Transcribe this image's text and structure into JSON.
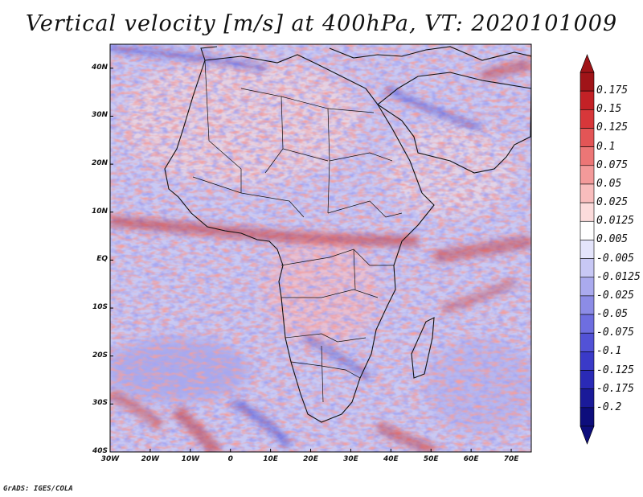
{
  "title": "Vertical velocity [m/s] at 400hPa, VT: 2020101009",
  "credit": "GrADS: IGES/COLA",
  "map": {
    "lon_range": [
      -30,
      75
    ],
    "lat_range": [
      -40,
      45
    ],
    "lon_ticks": [
      "30W",
      "20W",
      "10W",
      "0",
      "10E",
      "20E",
      "30E",
      "40E",
      "50E",
      "60E",
      "70E"
    ],
    "lat_ticks": [
      "40N",
      "30N",
      "20N",
      "10N",
      "EQ",
      "10S",
      "20S",
      "30S",
      "40S"
    ],
    "lat_tick_values": [
      40,
      30,
      20,
      10,
      0,
      -10,
      -20,
      -30,
      -40
    ]
  },
  "colorbar": {
    "labels": [
      "0.175",
      "0.15",
      "0.125",
      "0.1",
      "0.075",
      "0.05",
      "0.025",
      "0.0125",
      "0.005",
      "-0.005",
      "-0.0125",
      "-0.025",
      "-0.05",
      "-0.075",
      "-0.1",
      "-0.125",
      "-0.175",
      "-0.2"
    ],
    "colors": [
      "#a01418",
      "#c32126",
      "#d7373a",
      "#e35556",
      "#ec7676",
      "#f39a9a",
      "#f8bdbd",
      "#fcdcdc",
      "#ffffff",
      "#e4e4fb",
      "#c8c8f5",
      "#aaaaee",
      "#8c8ce6",
      "#6e6ee0",
      "#5252d6",
      "#3a3ac8",
      "#2a2ab6",
      "#1a1a99",
      "#0d0d7c"
    ]
  }
}
